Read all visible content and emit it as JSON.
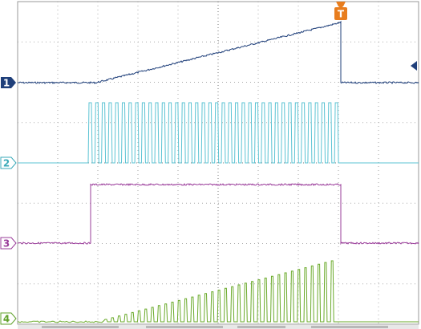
{
  "channels": [
    {
      "label": "1"
    },
    {
      "label": "2"
    },
    {
      "label": "3"
    },
    {
      "label": "4"
    }
  ],
  "trigger": {
    "label": "T"
  }
}
